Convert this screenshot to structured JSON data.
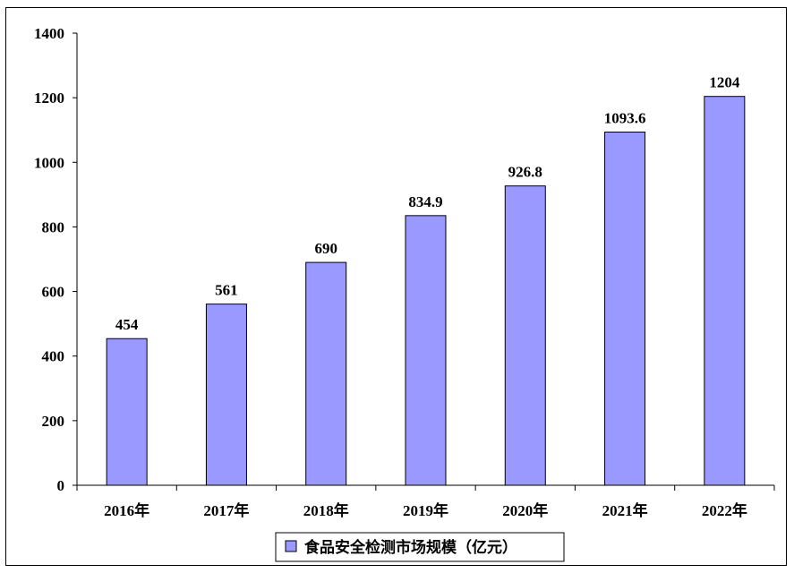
{
  "chart_data": {
    "type": "bar",
    "categories": [
      "2016年",
      "2017年",
      "2018年",
      "2019年",
      "2020年",
      "2021年",
      "2022年"
    ],
    "series": [
      {
        "name": "食品安全检测市场规模（亿元）",
        "values": [
          454,
          561,
          690,
          834.9,
          926.8,
          1093.6,
          1204
        ],
        "data_labels": [
          "454",
          "561",
          "690",
          "834.9",
          "926.8",
          "1093.6",
          "1204"
        ],
        "color": "#9999ff"
      }
    ],
    "ylim": [
      0,
      1400
    ],
    "yticks": [
      "0",
      "200",
      "400",
      "600",
      "800",
      "1000",
      "1200",
      "1400"
    ],
    "grid": false,
    "legend": "bottom"
  }
}
